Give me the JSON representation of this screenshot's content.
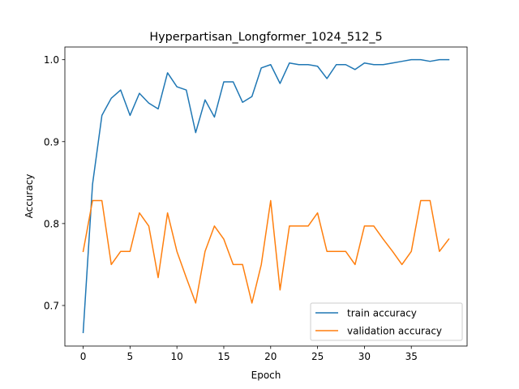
{
  "chart_data": {
    "type": "line",
    "title": "Hyperpartisan_Longformer_1024_512_5",
    "xlabel": "Epoch",
    "ylabel": "Accuracy",
    "xlim": [
      -1.95,
      40.95
    ],
    "ylim": [
      0.6505,
      1.0155
    ],
    "xticks": [
      0,
      5,
      10,
      15,
      20,
      25,
      30,
      35
    ],
    "yticks": [
      0.7,
      0.8,
      0.9,
      1.0
    ],
    "xtick_labels": [
      "0",
      "5",
      "10",
      "15",
      "20",
      "25",
      "30",
      "35"
    ],
    "ytick_labels": [
      "0.7",
      "0.8",
      "0.9",
      "1.0"
    ],
    "grid": false,
    "legend_position": "lower-right",
    "x": [
      0,
      1,
      2,
      3,
      4,
      5,
      6,
      7,
      8,
      9,
      10,
      11,
      12,
      13,
      14,
      15,
      16,
      17,
      18,
      19,
      20,
      21,
      22,
      23,
      24,
      25,
      26,
      27,
      28,
      29,
      30,
      31,
      32,
      33,
      34,
      35,
      36,
      37,
      38,
      39
    ],
    "series": [
      {
        "name": "train accuracy",
        "color": "#1f77b4",
        "values": [
          0.667,
          0.848,
          0.932,
          0.953,
          0.963,
          0.932,
          0.959,
          0.947,
          0.94,
          0.984,
          0.967,
          0.963,
          0.911,
          0.951,
          0.93,
          0.973,
          0.973,
          0.948,
          0.955,
          0.99,
          0.994,
          0.971,
          0.996,
          0.994,
          0.994,
          0.992,
          0.977,
          0.994,
          0.994,
          0.988,
          0.996,
          0.994,
          0.994,
          0.996,
          0.998,
          1.0,
          1.0,
          0.998,
          1.0,
          1.0
        ]
      },
      {
        "name": "validation accuracy",
        "color": "#ff7f0e",
        "values": [
          0.766,
          0.828,
          0.828,
          0.75,
          0.766,
          0.766,
          0.813,
          0.797,
          0.734,
          0.813,
          0.766,
          0.734,
          0.703,
          0.766,
          0.797,
          0.781,
          0.75,
          0.75,
          0.703,
          0.75,
          0.828,
          0.719,
          0.797,
          0.797,
          0.797,
          0.813,
          0.766,
          0.766,
          0.766,
          0.75,
          0.797,
          0.797,
          0.781,
          0.766,
          0.75,
          0.766,
          0.828,
          0.828,
          0.766,
          0.781
        ]
      }
    ]
  }
}
